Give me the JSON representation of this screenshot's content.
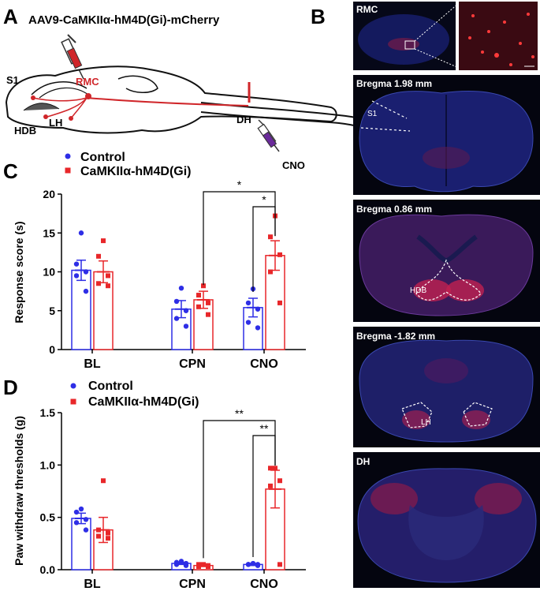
{
  "panel_letters": {
    "a": "A",
    "b": "B",
    "c": "C",
    "d": "D"
  },
  "panel_a": {
    "construct": "AAV9-CaMKIIα-hM4D(Gi)-mCherry",
    "regions": {
      "s1": "S1",
      "rmc": "RMC",
      "hdb": "HDB",
      "lh": "LH",
      "dh": "DH",
      "cno": "CNO"
    }
  },
  "panel_b": {
    "images": [
      {
        "label": "RMC"
      },
      {
        "label": "Bregma 1.98 mm",
        "region": "S1"
      },
      {
        "label": "Bregma 0.86 mm",
        "region": "HDB"
      },
      {
        "label": "Bregma -1.82 mm",
        "region": "LH"
      },
      {
        "label": "DH"
      }
    ]
  },
  "colors": {
    "control": "#2E2EE6",
    "treatment": "#E8272A",
    "stain_blue": "#1b1f8a",
    "stain_red": "#c0204a"
  },
  "chart_data": [
    {
      "type": "bar",
      "panel": "C",
      "ylabel": "Response score (s)",
      "ylim": [
        0,
        20
      ],
      "yticks": [
        0,
        5,
        10,
        15,
        20
      ],
      "categories": [
        "BL",
        "CPN",
        "CNO"
      ],
      "legend": [
        "Control",
        "CaMKIIα-hM4D(Gi)"
      ],
      "series": [
        {
          "name": "Control",
          "values": [
            10.2,
            5.2,
            5.4
          ],
          "sem": [
            1.3,
            1.1,
            1.2
          ],
          "points": [
            [
              15.0,
              11.0,
              10.0,
              9.5,
              7.5
            ],
            [
              7.9,
              6.2,
              5.0,
              4.0,
              3.0
            ],
            [
              7.8,
              6.0,
              5.2,
              3.5,
              2.8
            ]
          ]
        },
        {
          "name": "CaMKIIα-hM4D(Gi)",
          "values": [
            10.0,
            6.4,
            12.1
          ],
          "sem": [
            1.4,
            1.1,
            1.9
          ],
          "points": [
            [
              14.0,
              12.0,
              9.5,
              8.5,
              8.2
            ],
            [
              8.2,
              7.0,
              6.0,
              5.5,
              4.5
            ],
            [
              17.2,
              14.5,
              12.2,
              10.0,
              6.0
            ]
          ]
        }
      ],
      "significance": [
        {
          "from": "CPN hM4D(Gi)",
          "to": "CNO hM4D(Gi)",
          "label": "*"
        },
        {
          "from": "CNO Control",
          "to": "CNO hM4D(Gi)",
          "label": "*"
        }
      ]
    },
    {
      "type": "bar",
      "panel": "D",
      "ylabel": "Paw withdraw thresholds (g)",
      "ylim": [
        0,
        1.5
      ],
      "yticks": [
        "0.0",
        "0.5",
        "1.0",
        "1.5"
      ],
      "categories": [
        "BL",
        "CPN",
        "CNO"
      ],
      "legend": [
        "Control",
        "CaMKIIα-hM4D(Gi)"
      ],
      "series": [
        {
          "name": "Control",
          "values": [
            0.49,
            0.06,
            0.05
          ],
          "sem": [
            0.05,
            0.01,
            0.01
          ],
          "points": [
            [
              0.58,
              0.55,
              0.48,
              0.45,
              0.38
            ],
            [
              0.08,
              0.07,
              0.06,
              0.05,
              0.04
            ],
            [
              0.06,
              0.05,
              0.05,
              0.05,
              0.04
            ]
          ]
        },
        {
          "name": "CaMKIIα-hM4D(Gi)",
          "values": [
            0.38,
            0.04,
            0.77
          ],
          "sem": [
            0.12,
            0.01,
            0.18
          ],
          "points": [
            [
              0.85,
              0.38,
              0.35,
              0.32,
              0.3
            ],
            [
              0.05,
              0.05,
              0.04,
              0.03,
              0.03
            ],
            [
              0.97,
              0.97,
              0.85,
              0.8,
              0.05
            ]
          ]
        }
      ],
      "significance": [
        {
          "from": "CPN hM4D(Gi)",
          "to": "CNO hM4D(Gi)",
          "label": "**"
        },
        {
          "from": "CNO Control",
          "to": "CNO hM4D(Gi)",
          "label": "**"
        }
      ]
    }
  ]
}
